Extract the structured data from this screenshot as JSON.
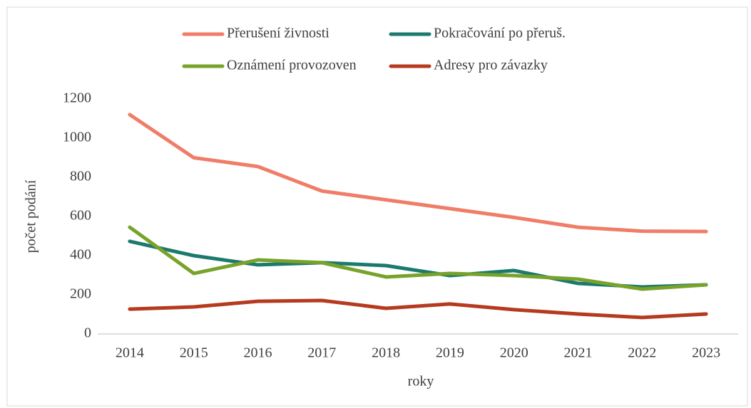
{
  "chart_data": {
    "type": "line",
    "x_label": "roky",
    "y_label": "počet podání",
    "categories": [
      "2014",
      "2015",
      "2016",
      "2017",
      "2018",
      "2019",
      "2020",
      "2021",
      "2022",
      "2023"
    ],
    "series": [
      {
        "name": "Přerušení živnosti",
        "color": "#f07d68",
        "values": [
          1120,
          900,
          855,
          730,
          685,
          640,
          595,
          545,
          525,
          523
        ]
      },
      {
        "name": "Pokračování po přeruš.",
        "color": "#1b7a6d",
        "values": [
          473,
          400,
          353,
          364,
          349,
          298,
          324,
          258,
          240,
          251
        ]
      },
      {
        "name": "Oznámení provozoven",
        "color": "#78a22a",
        "values": [
          545,
          309,
          378,
          364,
          291,
          309,
          298,
          280,
          229,
          251
        ]
      },
      {
        "name": "Adresy pro závazky",
        "color": "#b63a1f",
        "values": [
          127,
          138,
          167,
          171,
          131,
          153,
          124,
          102,
          84,
          102
        ]
      }
    ],
    "ylim": [
      0,
      1200
    ],
    "yticks": [
      0,
      200,
      400,
      600,
      800,
      1000,
      1200
    ],
    "grid": false
  }
}
